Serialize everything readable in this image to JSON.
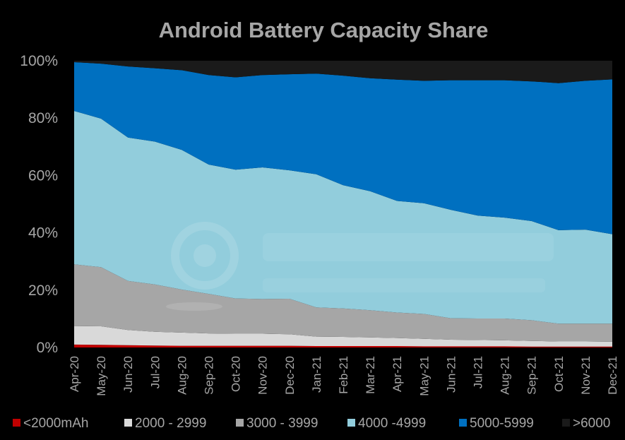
{
  "chart_data": {
    "type": "area",
    "stacked": true,
    "normalized": true,
    "title": "Android Battery Capacity Share",
    "categories": [
      "Apr-20",
      "May-20",
      "Jun-20",
      "Jul-20",
      "Aug-20",
      "Sep-20",
      "Oct-20",
      "Nov-20",
      "Dec-20",
      "Jan-21",
      "Feb-21",
      "Mar-21",
      "Apr-21",
      "May-21",
      "Jun-21",
      "Jul-21",
      "Aug-21",
      "Sep-21",
      "Oct-21",
      "Nov-21",
      "Dec-21"
    ],
    "yticks": [
      "0%",
      "20%",
      "40%",
      "60%",
      "80%",
      "100%"
    ],
    "ylim": [
      0,
      100
    ],
    "grid": false,
    "legend_position": "bottom",
    "series": [
      {
        "name": "<2000mAh",
        "color": "#c00000",
        "values": [
          1.0,
          0.9,
          0.8,
          0.7,
          0.6,
          0.6,
          0.6,
          0.6,
          0.6,
          0.5,
          0.5,
          0.5,
          0.5,
          0.4,
          0.4,
          0.4,
          0.4,
          0.3,
          0.3,
          0.3,
          0.3
        ]
      },
      {
        "name": "2000 - 2999",
        "color": "#d9d9d9",
        "values": [
          6.5,
          6.5,
          5.3,
          4.8,
          4.6,
          4.3,
          4.2,
          4.2,
          4.0,
          3.3,
          3.2,
          3.0,
          2.8,
          2.6,
          2.3,
          2.2,
          2.1,
          2.0,
          1.8,
          1.8,
          1.7
        ]
      },
      {
        "name": "3000 - 3999",
        "color": "#a6a6a6",
        "values": [
          21.5,
          20.6,
          17.1,
          16.5,
          15.0,
          13.8,
          12.3,
          12.1,
          12.4,
          10.2,
          9.9,
          9.5,
          8.9,
          8.7,
          7.5,
          7.5,
          7.6,
          7.2,
          6.2,
          6.2,
          6.3
        ]
      },
      {
        "name": "4000 -4999",
        "color": "#92cddc",
        "values": [
          53.5,
          51.8,
          50.0,
          49.8,
          48.7,
          45.1,
          44.9,
          45.9,
          44.8,
          46.4,
          43.0,
          41.5,
          38.9,
          38.6,
          37.8,
          35.9,
          35.2,
          34.6,
          32.6,
          32.8,
          31.2
        ]
      },
      {
        "name": "5000-5999",
        "color": "#0070c0",
        "values": [
          17.0,
          19.2,
          24.8,
          25.6,
          27.8,
          31.2,
          32.2,
          32.2,
          33.5,
          35.1,
          38.2,
          39.4,
          42.3,
          42.7,
          45.2,
          47.2,
          47.9,
          48.7,
          51.3,
          51.9,
          54.0
        ]
      },
      {
        "name": ">6000",
        "color": "#1a1a1a",
        "values": [
          0.5,
          1.0,
          2.0,
          2.6,
          3.3,
          5.0,
          5.8,
          5.0,
          4.7,
          4.5,
          5.2,
          6.1,
          6.6,
          7.0,
          6.8,
          6.8,
          6.8,
          7.2,
          7.8,
          7.0,
          6.5
        ]
      }
    ]
  }
}
